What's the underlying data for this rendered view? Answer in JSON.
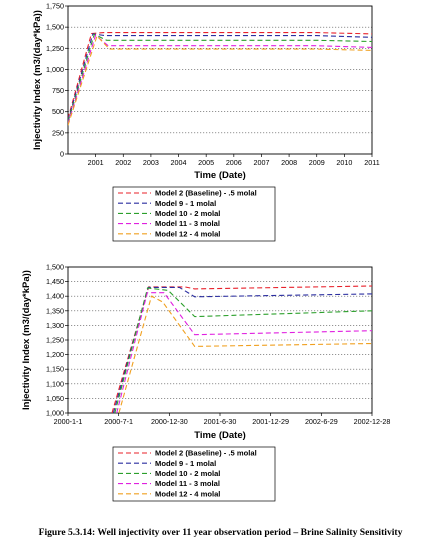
{
  "chart_data": [
    {
      "type": "line",
      "xlabel": "Time (Date)",
      "ylabel": "Injectivity Index (m3/(day*kPa))",
      "x_ticks": [
        "2001",
        "2002",
        "2003",
        "2004",
        "2005",
        "2006",
        "2007",
        "2008",
        "2009",
        "2010",
        "2011"
      ],
      "xlim": [
        2000,
        2011
      ],
      "ylim": [
        0,
        1750
      ],
      "y_ticks": [
        "0",
        "250",
        "500",
        "750",
        "1,000",
        "1,250",
        "1,500",
        "1,750"
      ],
      "grid": true,
      "series": [
        {
          "name": "Model 2 (Baseline) - .5 molal",
          "color": "#e8202a",
          "x": [
            2000,
            2000.85,
            2001.3,
            2003,
            2006,
            2009,
            2011
          ],
          "y": [
            420,
            1425,
            1435,
            1435,
            1435,
            1435,
            1420
          ]
        },
        {
          "name": "Model 9 - 1 molal",
          "color": "#2b2ea0",
          "x": [
            2000,
            2000.9,
            2001.35,
            2003,
            2006,
            2009,
            2011
          ],
          "y": [
            400,
            1420,
            1400,
            1400,
            1400,
            1400,
            1380
          ]
        },
        {
          "name": "Model 10 - 2 molal",
          "color": "#2ca02c",
          "x": [
            2000,
            2000.95,
            2001.4,
            2003,
            2006,
            2009,
            2011
          ],
          "y": [
            380,
            1415,
            1345,
            1345,
            1345,
            1345,
            1330
          ]
        },
        {
          "name": "Model 11 - 3 molal",
          "color": "#e020e0",
          "x": [
            2000,
            2001.0,
            2001.45,
            2003,
            2006,
            2009,
            2011
          ],
          "y": [
            360,
            1405,
            1280,
            1280,
            1280,
            1280,
            1260
          ]
        },
        {
          "name": "Model 12 - 4 molal",
          "color": "#f0a020",
          "x": [
            2000,
            2001.05,
            2001.5,
            2003,
            2006,
            2009,
            2011
          ],
          "y": [
            340,
            1395,
            1240,
            1240,
            1240,
            1240,
            1225
          ]
        }
      ]
    },
    {
      "type": "line",
      "xlabel": "Time (Date)",
      "ylabel": "Injectivity Index (m3/(day*kPa))",
      "x_ticks": [
        "2000-1-1",
        "2000-7-1",
        "2000-12-30",
        "2001-6-30",
        "2001-12-29",
        "2002-6-29",
        "2002-12-28"
      ],
      "xlim": [
        0,
        1092
      ],
      "ylim": [
        1000,
        1500
      ],
      "y_ticks": [
        "1,000",
        "1,050",
        "1,100",
        "1,150",
        "1,200",
        "1,250",
        "1,300",
        "1,350",
        "1,400",
        "1,450",
        "1,500"
      ],
      "grid": true,
      "series": [
        {
          "name": "Model 2 (Baseline) - .5 molal",
          "color": "#e8202a",
          "x": [
            158,
            290,
            420,
            455,
            1092
          ],
          "y": [
            1000,
            1432,
            1432,
            1425,
            1435
          ]
        },
        {
          "name": "Model 9 - 1 molal",
          "color": "#2b2ea0",
          "x": [
            163,
            288,
            400,
            455,
            1092
          ],
          "y": [
            1000,
            1430,
            1430,
            1398,
            1408
          ]
        },
        {
          "name": "Model 10 - 2 molal",
          "color": "#2ca02c",
          "x": [
            168,
            286,
            360,
            455,
            1092
          ],
          "y": [
            1000,
            1428,
            1420,
            1330,
            1350
          ]
        },
        {
          "name": "Model 11 - 3 molal",
          "color": "#e020e0",
          "x": [
            175,
            285,
            345,
            455,
            1092
          ],
          "y": [
            1000,
            1412,
            1412,
            1268,
            1282
          ]
        },
        {
          "name": "Model 12 - 4 molal",
          "color": "#f0a020",
          "x": [
            183,
            300,
            340,
            455,
            1092
          ],
          "y": [
            1000,
            1400,
            1380,
            1228,
            1238
          ]
        }
      ]
    }
  ],
  "caption": "Figure 5.3.14: Well injectivity over 11 year observation period – Brine Salinity Sensitivity"
}
